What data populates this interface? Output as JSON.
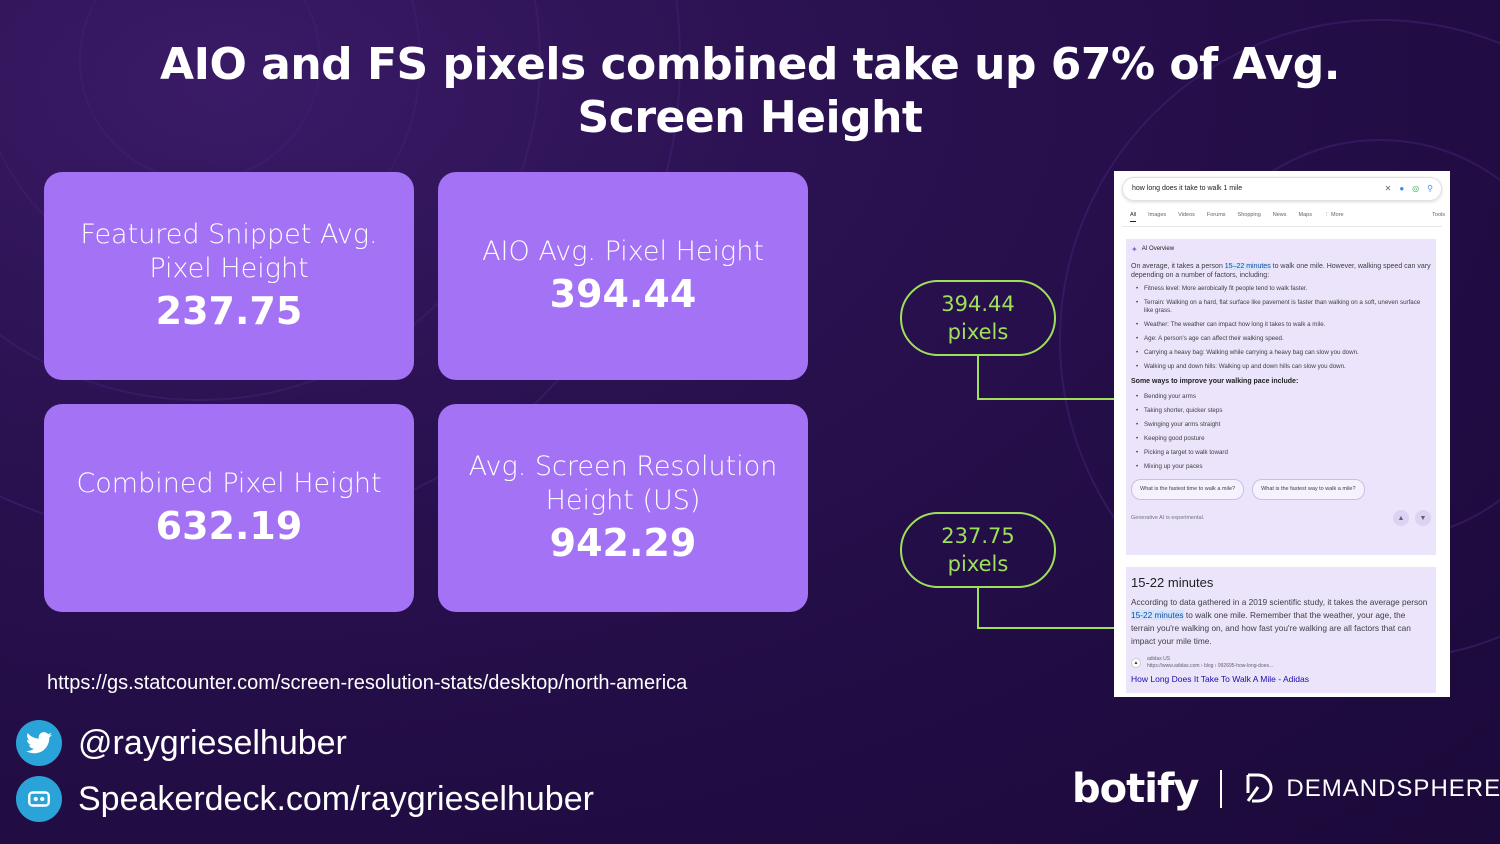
{
  "slide": {
    "title": "AIO and FS pixels combined take up 67% of Avg. Screen Height"
  },
  "cards": [
    {
      "label": "Featured Snippet Avg. Pixel Height",
      "value": "237.75"
    },
    {
      "label": "AIO Avg. Pixel Height",
      "value": "394.44"
    },
    {
      "label": "Combined Pixel Height",
      "value": "632.19"
    },
    {
      "label": "Avg. Screen Resolution Height (US)",
      "value": "942.29"
    }
  ],
  "callouts": [
    {
      "value": "394.44",
      "unit": "pixels"
    },
    {
      "value": "237.75",
      "unit": "pixels"
    }
  ],
  "source": {
    "url": "https://gs.statcounter.com/screen-resolution-stats/desktop/north-america"
  },
  "social": {
    "twitter": "@raygrieselhuber",
    "speakerdeck": "Speakerdeck.com/raygrieselhuber",
    "twitter_icon": "twitter-bird-icon",
    "speakerdeck_icon": "speakerdeck-icon"
  },
  "logos": {
    "botify": "botify",
    "demandsphere": "DEMANDSPHERE"
  },
  "serp": {
    "query": "how long does it take to walk 1 mile",
    "tabs": [
      "All",
      "Images",
      "Videos",
      "Forums",
      "Shopping",
      "News",
      "Maps",
      "⋮ More"
    ],
    "tools": "Tools",
    "aio": {
      "heading": "AI Overview",
      "intro_before": "On average, it takes a person ",
      "intro_highlight": "15–22 minutes",
      "intro_after": " to walk one mile. However, walking speed can vary depending on a number of factors, including:",
      "factors": [
        "Fitness level: More aerobically fit people tend to walk faster.",
        "Terrain: Walking on a hard, flat surface like pavement is faster than walking on a soft, uneven surface like grass.",
        "Weather: The weather can impact how long it takes to walk a mile.",
        "Age: A person's age can affect their walking speed.",
        "Carrying a heavy bag: Walking while carrying a heavy bag can slow you down.",
        "Walking up and down hills: Walking up and down hills can slow you down."
      ],
      "improve_heading": "Some ways to improve your walking pace include:",
      "tips": [
        "Bending your arms",
        "Taking shorter, quicker steps",
        "Swinging your arms straight",
        "Keeping good posture",
        "Picking a target to walk toward",
        "Mixing up your paces"
      ],
      "chips": [
        "What is the fastest time to walk a mile?",
        "What is the fastest way to walk a mile?"
      ],
      "disclaimer": "Generative AI is experimental."
    },
    "fs": {
      "title": "15-22 minutes",
      "body_before": "According to data gathered in a 2019 scientific study, it takes the average person ",
      "body_highlight": "15-22 minutes",
      "body_after": " to walk one mile. Remember that the weather, your age, the terrain you're walking on, and how fast you're walking are all factors that can impact your mile time.",
      "source_name": "adidas US",
      "source_url": "https://www.adidas.com › blog › 992695-how-long-does...",
      "link": "How Long Does It Take To Walk A Mile - Adidas"
    }
  },
  "colors": {
    "card": "#a472f5",
    "callout": "#9ee05a",
    "background": "#210c43"
  }
}
